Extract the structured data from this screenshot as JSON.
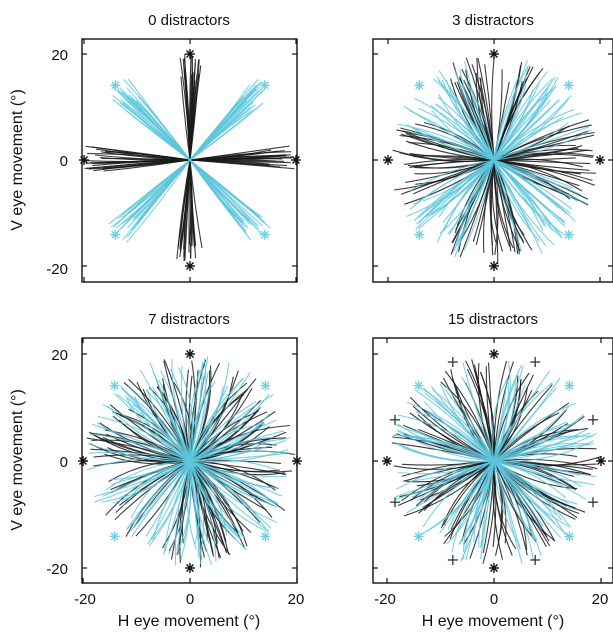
{
  "chart_data": [
    {
      "type": "line",
      "title": "0 distractors",
      "xlabel": "",
      "ylabel": "V eye movement (°)",
      "xlim": [
        -20,
        20
      ],
      "ylim": [
        -20,
        20
      ],
      "xticks": [
        "",
        "",
        ""
      ],
      "yticks": [
        "20",
        "0",
        "-20"
      ],
      "targets": {
        "cardinal": [
          [
            0,
            20
          ],
          [
            20,
            0
          ],
          [
            0,
            -20
          ],
          [
            -20,
            0
          ]
        ],
        "diagonal": [
          [
            14.1,
            14.1
          ],
          [
            14.1,
            -14.1
          ],
          [
            -14.1,
            -14.1
          ],
          [
            -14.1,
            14.1
          ]
        ]
      },
      "distractor_markers": [],
      "series": [
        {
          "color": "#1a1a1a",
          "directions": [
            [
              0,
              20
            ],
            [
              20,
              0
            ],
            [
              0,
              -20
            ],
            [
              -20,
              0
            ]
          ]
        },
        {
          "color": "#5bc6dc",
          "directions": [
            [
              14.1,
              14.1
            ],
            [
              14.1,
              -14.1
            ],
            [
              -14.1,
              -14.1
            ],
            [
              -14.1,
              14.1
            ]
          ]
        }
      ],
      "spread_deg": 2.5,
      "traces_per_direction": 22
    },
    {
      "type": "line",
      "title": "3 distractors",
      "xlabel": "",
      "ylabel": "",
      "xlim": [
        -20,
        20
      ],
      "ylim": [
        -20,
        20
      ],
      "xticks": [
        "",
        "",
        ""
      ],
      "yticks": [
        "",
        "",
        ""
      ],
      "targets": {
        "cardinal": [
          [
            0,
            20
          ],
          [
            20,
            0
          ],
          [
            0,
            -20
          ],
          [
            -20,
            0
          ]
        ],
        "diagonal": [
          [
            14.1,
            14.1
          ],
          [
            14.1,
            -14.1
          ],
          [
            -14.1,
            -14.1
          ],
          [
            -14.1,
            14.1
          ]
        ]
      },
      "distractor_markers": [],
      "series": [
        {
          "color": "#1a1a1a",
          "directions": [
            [
              0,
              20
            ],
            [
              20,
              0
            ],
            [
              0,
              -20
            ],
            [
              -20,
              0
            ]
          ]
        },
        {
          "color": "#5bc6dc",
          "directions": [
            [
              14.1,
              14.1
            ],
            [
              14.1,
              -14.1
            ],
            [
              -14.1,
              -14.1
            ],
            [
              -14.1,
              14.1
            ]
          ]
        }
      ],
      "spread_deg": 9,
      "traces_per_direction": 28
    },
    {
      "type": "line",
      "title": "7 distractors",
      "xlabel": "H eye movement (°)",
      "ylabel": "V eye movement (°)",
      "xlim": [
        -20,
        20
      ],
      "ylim": [
        -20,
        20
      ],
      "xticks": [
        "-20",
        "0",
        "20"
      ],
      "yticks": [
        "20",
        "0",
        "-20"
      ],
      "targets": {
        "cardinal": [
          [
            0,
            20
          ],
          [
            20,
            0
          ],
          [
            0,
            -20
          ],
          [
            -20,
            0
          ]
        ],
        "diagonal": [
          [
            14.1,
            14.1
          ],
          [
            14.1,
            -14.1
          ],
          [
            -14.1,
            -14.1
          ],
          [
            -14.1,
            14.1
          ]
        ]
      },
      "distractor_markers": [],
      "series": [
        {
          "color": "#1a1a1a",
          "directions": [
            [
              0,
              20
            ],
            [
              20,
              0
            ],
            [
              0,
              -20
            ],
            [
              -20,
              0
            ]
          ]
        },
        {
          "color": "#5bc6dc",
          "directions": [
            [
              14.1,
              14.1
            ],
            [
              14.1,
              -14.1
            ],
            [
              -14.1,
              -14.1
            ],
            [
              -14.1,
              14.1
            ]
          ]
        }
      ],
      "spread_deg": 13,
      "traces_per_direction": 30
    },
    {
      "type": "line",
      "title": "15 distractors",
      "xlabel": "H eye movement (°)",
      "ylabel": "",
      "xlim": [
        -20,
        20
      ],
      "ylim": [
        -20,
        20
      ],
      "xticks": [
        "-20",
        "0",
        "20"
      ],
      "yticks": [
        "",
        "",
        ""
      ],
      "targets": {
        "cardinal": [
          [
            0,
            20
          ],
          [
            20,
            0
          ],
          [
            0,
            -20
          ],
          [
            -20,
            0
          ]
        ],
        "diagonal": [
          [
            14.1,
            14.1
          ],
          [
            14.1,
            -14.1
          ],
          [
            -14.1,
            -14.1
          ],
          [
            -14.1,
            14.1
          ]
        ]
      },
      "distractor_markers": [
        [
          7.7,
          18.5
        ],
        [
          18.5,
          7.7
        ],
        [
          18.5,
          -7.7
        ],
        [
          7.7,
          -18.5
        ],
        [
          -7.7,
          -18.5
        ],
        [
          -18.5,
          -7.7
        ],
        [
          -18.5,
          7.7
        ],
        [
          -7.7,
          18.5
        ]
      ],
      "series": [
        {
          "color": "#1a1a1a",
          "directions": [
            [
              0,
              20
            ],
            [
              20,
              0
            ],
            [
              0,
              -20
            ],
            [
              -20,
              0
            ]
          ]
        },
        {
          "color": "#5bc6dc",
          "directions": [
            [
              14.1,
              14.1
            ],
            [
              14.1,
              -14.1
            ],
            [
              -14.1,
              -14.1
            ],
            [
              -14.1,
              14.1
            ]
          ]
        }
      ],
      "spread_deg": 12,
      "traces_per_direction": 28
    }
  ]
}
